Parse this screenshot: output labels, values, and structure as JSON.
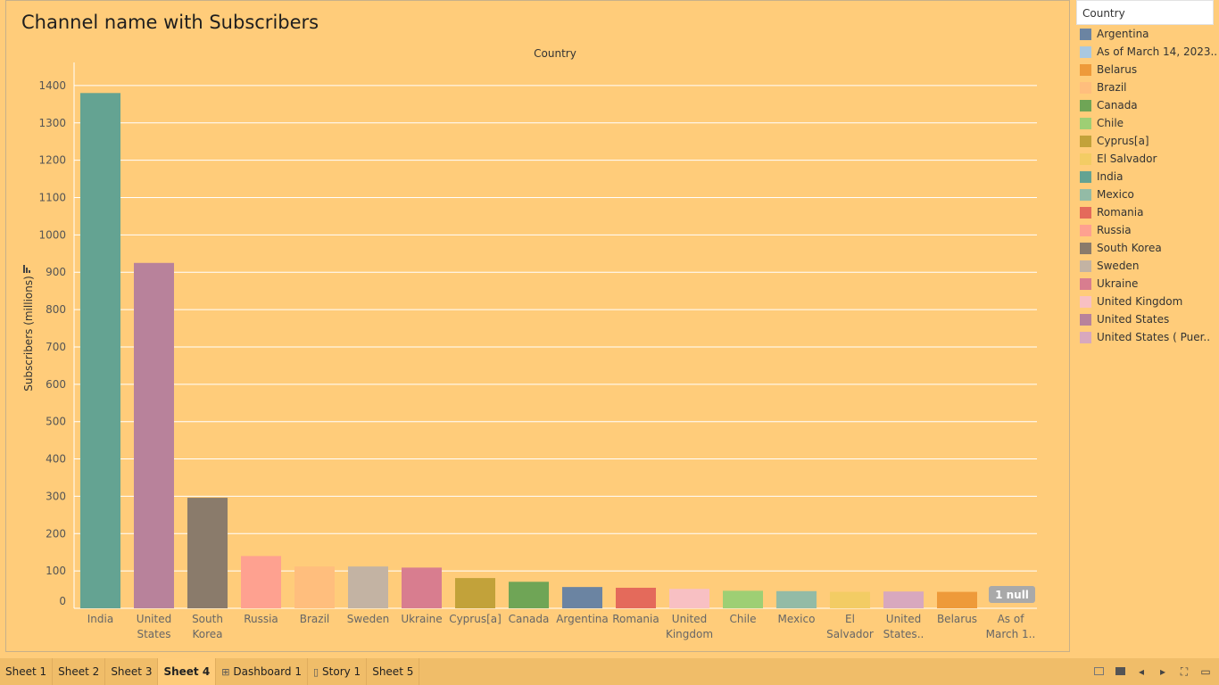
{
  "sheet_title": "Channel name with Subscribers",
  "legend": {
    "title": "Country",
    "items": [
      {
        "label": "Argentina",
        "color": "#6b84a2"
      },
      {
        "label": "As of March 14, 2023..",
        "color": "#a9c8e0"
      },
      {
        "label": "Belarus",
        "color": "#ee9a3a"
      },
      {
        "label": "Brazil",
        "color": "#ffbe7d"
      },
      {
        "label": "Canada",
        "color": "#6fa556"
      },
      {
        "label": "Chile",
        "color": "#9ecf74"
      },
      {
        "label": "Cyprus[a]",
        "color": "#c2a23a"
      },
      {
        "label": "El Salvador",
        "color": "#f3cc64"
      },
      {
        "label": "India",
        "color": "#64a392"
      },
      {
        "label": "Mexico",
        "color": "#93bba6"
      },
      {
        "label": "Romania",
        "color": "#e46a5b"
      },
      {
        "label": "Russia",
        "color": "#fea190"
      },
      {
        "label": "South Korea",
        "color": "#8a7b6b"
      },
      {
        "label": "Sweden",
        "color": "#c3b3a3"
      },
      {
        "label": "Ukraine",
        "color": "#d87d8f"
      },
      {
        "label": "United Kingdom",
        "color": "#f8c0c3"
      },
      {
        "label": "United States",
        "color": "#b8829b"
      },
      {
        "label": "United States ( Puer..",
        "color": "#d8a8be"
      }
    ]
  },
  "chart_data": {
    "type": "bar",
    "title": "Country",
    "ylabel": "Subscribers (millions)",
    "ylim": [
      0,
      1450
    ],
    "yticks": [
      0,
      100,
      200,
      300,
      400,
      500,
      600,
      700,
      800,
      900,
      1000,
      1100,
      1200,
      1300,
      1400
    ],
    "grid": true,
    "categories": [
      [
        "India"
      ],
      [
        "United",
        "States"
      ],
      [
        "South",
        "Korea"
      ],
      [
        "Russia"
      ],
      [
        "Brazil"
      ],
      [
        "Sweden"
      ],
      [
        "Ukraine"
      ],
      [
        "Cyprus[a]"
      ],
      [
        "Canada"
      ],
      [
        "Argentina"
      ],
      [
        "Romania"
      ],
      [
        "United",
        "Kingdom"
      ],
      [
        "Chile"
      ],
      [
        "Mexico"
      ],
      [
        "El",
        "Salvador"
      ],
      [
        "United",
        "States.."
      ],
      [
        "Belarus"
      ],
      [
        "As of",
        "March 1.."
      ]
    ],
    "values": [
      1380,
      925,
      296,
      140,
      112,
      112,
      109,
      81,
      71,
      57,
      55,
      52,
      47,
      46,
      44,
      45,
      44,
      null
    ],
    "colors": [
      "#64a392",
      "#b8829b",
      "#8a7b6b",
      "#fea190",
      "#ffbe7d",
      "#c3b3a3",
      "#d87d8f",
      "#c2a23a",
      "#6fa556",
      "#6b84a2",
      "#e46a5b",
      "#f8c0c3",
      "#9ecf74",
      "#93bba6",
      "#f3cc64",
      "#d8a8be",
      "#ee9a3a",
      "#a9c8e0"
    ],
    "null_indicator": "1 null"
  },
  "tabs": [
    {
      "label": "Sheet 1",
      "icon": ""
    },
    {
      "label": "Sheet 2",
      "icon": ""
    },
    {
      "label": "Sheet 3",
      "icon": ""
    },
    {
      "label": "Sheet 4",
      "icon": "",
      "active": true
    },
    {
      "label": "Dashboard 1",
      "icon": "dashboard-icon"
    },
    {
      "label": "Story 1",
      "icon": "story-icon"
    },
    {
      "label": "Sheet 5",
      "icon": ""
    }
  ]
}
